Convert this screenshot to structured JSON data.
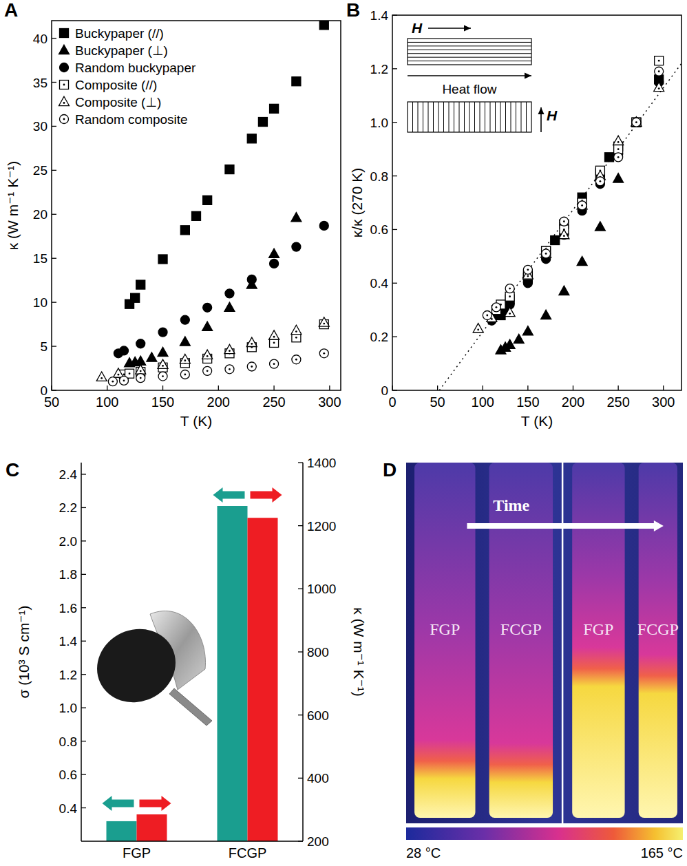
{
  "chart_data": [
    {
      "type": "scatter",
      "panel": "A",
      "xlabel": "T (K)",
      "ylabel": "κ (W m⁻¹ K⁻¹)",
      "xlim": [
        50,
        310
      ],
      "xticks": [
        50,
        100,
        150,
        200,
        250,
        300
      ],
      "ylim": [
        0,
        42
      ],
      "yticks": [
        0,
        5,
        10,
        15,
        20,
        25,
        30,
        35,
        40
      ],
      "grid": false,
      "legend": "top-left",
      "series": [
        {
          "name": "Buckypaper (//)",
          "color": "#000000",
          "marker": "square",
          "x": [
            120,
            125,
            130,
            150,
            170,
            180,
            190,
            210,
            230,
            240,
            250,
            270,
            295
          ],
          "values": [
            9.8,
            10.5,
            12.0,
            14.9,
            18.2,
            19.8,
            21.6,
            25.1,
            28.6,
            30.5,
            32.0,
            35.1,
            41.5
          ]
        },
        {
          "name": "Buckypaper (⊥)",
          "color": "#000000",
          "marker": "triangle",
          "x": [
            120,
            125,
            130,
            140,
            150,
            170,
            190,
            210,
            230,
            250,
            270
          ],
          "values": [
            3.1,
            3.2,
            3.3,
            3.7,
            4.3,
            5.5,
            7.2,
            9.4,
            12.0,
            15.5,
            19.6
          ]
        },
        {
          "name": "Random buckypaper",
          "color": "#000000",
          "marker": "circle",
          "x": [
            110,
            115,
            130,
            150,
            170,
            190,
            210,
            230,
            250,
            270,
            295
          ],
          "values": [
            4.2,
            4.5,
            5.3,
            6.6,
            8.0,
            9.4,
            11.0,
            12.6,
            14.4,
            16.3,
            18.7
          ]
        },
        {
          "name": "Composite (//)",
          "color": "#000000",
          "marker": "square-dot",
          "x": [
            115,
            120,
            130,
            150,
            170,
            190,
            210,
            230,
            250,
            270,
            295
          ],
          "values": [
            1.8,
            1.9,
            2.1,
            2.6,
            3.1,
            3.6,
            4.2,
            4.9,
            5.4,
            6.0,
            7.5
          ]
        },
        {
          "name": "Composite (⊥)",
          "color": "#000000",
          "marker": "triangle-dot",
          "x": [
            95,
            110,
            130,
            150,
            170,
            190,
            210,
            230,
            250,
            270,
            295
          ],
          "values": [
            1.5,
            1.9,
            2.3,
            2.9,
            3.5,
            4.0,
            4.6,
            5.4,
            6.2,
            6.8,
            7.7
          ]
        },
        {
          "name": "Random composite",
          "color": "#000000",
          "marker": "circle-dot",
          "x": [
            105,
            115,
            130,
            150,
            170,
            190,
            210,
            230,
            250,
            270,
            295
          ],
          "values": [
            1.0,
            1.1,
            1.4,
            1.6,
            1.8,
            2.2,
            2.4,
            2.7,
            3.0,
            3.5,
            4.2
          ]
        }
      ]
    },
    {
      "type": "scatter",
      "panel": "B",
      "xlabel": "T (K)",
      "ylabel": "κ/κ (270 K)",
      "xlim": [
        0,
        320
      ],
      "xticks": [
        0,
        50,
        100,
        150,
        200,
        250,
        300
      ],
      "ylim": [
        0,
        1.4
      ],
      "yticks": [
        0,
        0.2,
        0.4,
        0.6,
        0.8,
        {
          "value": 1,
          "label": "1.0"
        },
        1.2,
        1.4
      ],
      "grid": false,
      "inset": {
        "parallel_field": "H",
        "heat_flow": "Heat flow",
        "perpendicular_field": "H"
      },
      "fit_line": {
        "x": [
          52,
          320
        ],
        "values": [
          0,
          1.22
        ],
        "line_style": "dotted"
      },
      "series": [
        {
          "color": "#000000",
          "marker": "square",
          "x": [
            120,
            125,
            130,
            150,
            170,
            180,
            190,
            210,
            230,
            240,
            250,
            270,
            295
          ],
          "values": [
            0.28,
            0.3,
            0.34,
            0.42,
            0.52,
            0.56,
            0.62,
            0.72,
            0.81,
            0.87,
            0.91,
            1.0,
            1.16
          ]
        },
        {
          "color": "#000000",
          "marker": "triangle",
          "x": [
            120,
            125,
            130,
            140,
            150,
            170,
            190,
            210,
            230,
            250,
            270
          ],
          "values": [
            0.15,
            0.16,
            0.17,
            0.19,
            0.22,
            0.28,
            0.37,
            0.48,
            0.61,
            0.79,
            1.0
          ]
        },
        {
          "color": "#000000",
          "marker": "circle",
          "x": [
            110,
            115,
            130,
            150,
            170,
            190,
            210,
            230,
            250,
            270,
            295
          ],
          "values": [
            0.26,
            0.28,
            0.32,
            0.4,
            0.49,
            0.58,
            0.67,
            0.77,
            0.88,
            1.0,
            1.15
          ]
        },
        {
          "color": "#000000",
          "marker": "square-dot",
          "x": [
            115,
            120,
            130,
            150,
            170,
            190,
            210,
            230,
            250,
            270,
            295
          ],
          "values": [
            0.3,
            0.32,
            0.35,
            0.43,
            0.52,
            0.6,
            0.7,
            0.82,
            0.9,
            1.0,
            1.23
          ]
        },
        {
          "color": "#000000",
          "marker": "triangle-dot",
          "x": [
            95,
            110,
            130,
            150,
            170,
            190,
            210,
            230,
            250,
            270,
            295
          ],
          "values": [
            0.23,
            0.27,
            0.29,
            0.43,
            0.51,
            0.58,
            0.69,
            0.8,
            0.93,
            1.0,
            1.13
          ]
        },
        {
          "color": "#000000",
          "marker": "circle-dot",
          "x": [
            105,
            115,
            130,
            150,
            170,
            190,
            210,
            230,
            250,
            270,
            295
          ],
          "values": [
            0.28,
            0.31,
            0.38,
            0.45,
            0.51,
            0.63,
            0.69,
            0.78,
            0.87,
            1.0,
            1.19
          ]
        }
      ]
    },
    {
      "type": "bar",
      "panel": "C",
      "categories": [
        "FGP",
        "FCGP"
      ],
      "ylabel": "σ (10³ S cm⁻¹)",
      "y2label": "κ (W m⁻¹ K⁻¹)",
      "ylim": [
        0.2,
        2.47
      ],
      "yticks": [
        0.4,
        0.6,
        0.8,
        {
          "value": 1,
          "label": "1.0"
        },
        1.2,
        1.4,
        1.6,
        1.8,
        {
          "value": 2,
          "label": "2.0"
        },
        2.2,
        2.4
      ],
      "y2lim": [
        200,
        1400
      ],
      "y2ticks": [
        200,
        400,
        600,
        800,
        1000,
        1200,
        1400
      ],
      "grid": false,
      "series": [
        {
          "color": "#1a9e8f",
          "values": [
            0.32,
            2.21
          ]
        },
        {
          "color": "#ee1d23",
          "axis": "y2",
          "values": [
            285,
            1225
          ]
        }
      ]
    },
    {
      "type": "thermal_image",
      "panel": "D",
      "annotation": "Time",
      "labels": [
        "FGP",
        "FCGP",
        "FGP",
        "FCGP"
      ],
      "colorbar_range": [
        28,
        165
      ],
      "colorbar_ticks": [
        {
          "value": 28,
          "label": "28 °C"
        },
        {
          "value": 165,
          "label": "165 °C"
        }
      ]
    }
  ]
}
